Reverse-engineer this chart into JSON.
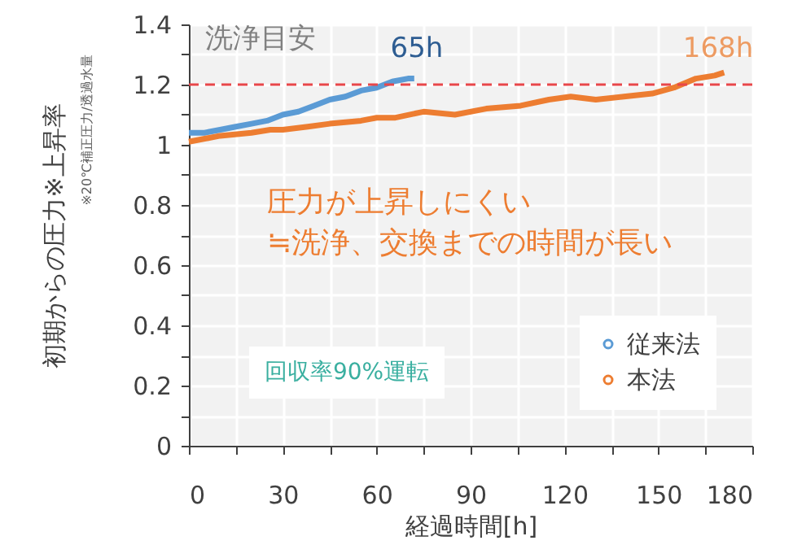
{
  "chart_data": {
    "type": "line",
    "xlabel": "経過時間[h]",
    "ylabel": "初期からの圧力※上昇率",
    "xlim": [
      0,
      180
    ],
    "xticks": [
      0,
      {
        "value": 15,
        "label": null
      },
      30,
      {
        "value": 45,
        "label": null
      },
      60,
      {
        "value": 75,
        "label": null
      },
      90,
      {
        "value": 105,
        "label": null
      },
      120,
      {
        "value": 135,
        "label": null
      },
      150,
      {
        "value": 165,
        "label": null
      },
      180
    ],
    "ylim": [
      0,
      1.4
    ],
    "yticks": [
      0,
      {
        "value": 0.1,
        "label": null
      },
      0.2,
      {
        "value": 0.3,
        "label": null
      },
      0.4,
      {
        "value": 0.5,
        "label": null
      },
      0.6,
      {
        "value": 0.7,
        "label": null
      },
      0.8,
      {
        "value": 0.9,
        "label": null
      },
      1,
      {
        "value": 1.1,
        "label": null
      },
      1.2,
      {
        "value": 1.3,
        "label": null
      },
      1.4
    ],
    "grid": true,
    "legend": "bottom right",
    "marker": "none",
    "line_style": "solid",
    "series": [
      {
        "name": "従来法",
        "color": "#5b9bd5",
        "x": [
          0,
          5,
          10,
          15,
          20,
          25,
          30,
          35,
          40,
          45,
          50,
          55,
          60,
          65,
          70,
          72
        ],
        "values": [
          1.04,
          1.04,
          1.05,
          1.06,
          1.07,
          1.08,
          1.1,
          1.11,
          1.13,
          1.15,
          1.16,
          1.18,
          1.19,
          1.21,
          1.22,
          1.22
        ]
      },
      {
        "name": "本法",
        "color": "#ed7d31",
        "x": [
          0,
          10,
          20,
          26,
          30,
          38,
          45,
          55,
          60,
          66,
          75,
          85,
          95,
          106,
          115,
          122,
          130,
          139,
          148,
          155,
          162,
          168,
          171
        ],
        "values": [
          1.01,
          1.03,
          1.04,
          1.05,
          1.05,
          1.06,
          1.07,
          1.08,
          1.09,
          1.09,
          1.11,
          1.1,
          1.12,
          1.13,
          1.15,
          1.16,
          1.15,
          1.16,
          1.17,
          1.19,
          1.22,
          1.23,
          1.24
        ]
      }
    ],
    "ref_lines": [
      {
        "axis": "y",
        "value": 1.2,
        "label": "洗浄目安",
        "color": "#e8474a",
        "line_style": "dashed"
      }
    ],
    "annotations": [
      "※20℃補正圧力/透過水量",
      "65h",
      "168h",
      "圧力が上昇しにくい",
      "≒洗浄、交換までの時間が長い",
      "回収率90%運転"
    ]
  }
}
